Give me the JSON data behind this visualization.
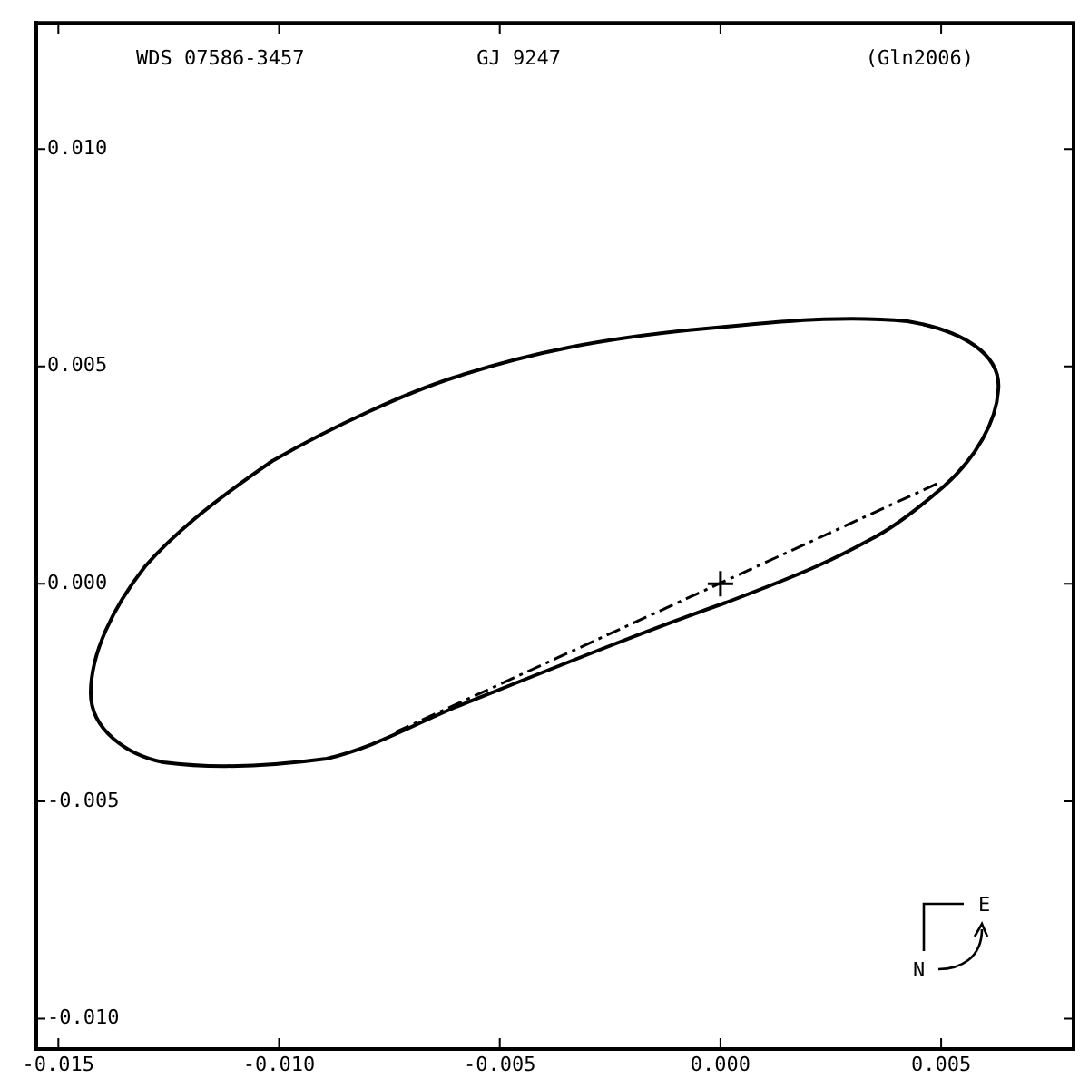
{
  "chart_data": {
    "type": "line",
    "title": "GJ 9247",
    "annotations": [
      "WDS 07586-3457",
      "(Gln2006)",
      "N",
      "E"
    ],
    "series": [
      {
        "type": "line",
        "color": "#000000",
        "line_style": "dashed",
        "marker": "none",
        "x": [
          -0.00736,
          0.00499
        ],
        "values": [
          -0.00341,
          0.00234
        ]
      },
      {
        "type": "scatter",
        "color": "#000000",
        "marker": "cross",
        "x": [
          0
        ],
        "values": [
          0
        ]
      }
    ],
    "xlim": [
      -0.0155,
      0.008
    ],
    "ylim": [
      -0.0107,
      0.0129
    ],
    "xticks": [
      {
        "value": -0.015,
        "label": "-0.015"
      },
      {
        "value": -0.01,
        "label": "-0.010"
      },
      {
        "value": -0.005,
        "label": "-0.005"
      },
      {
        "value": 0,
        "label": "0.000"
      },
      {
        "value": 0.005,
        "label": "0.005"
      }
    ],
    "yticks": [
      {
        "value": -0.01,
        "label": "-0.010"
      },
      {
        "value": -0.005,
        "label": "-0.005"
      },
      {
        "value": 0,
        "label": "0.000"
      },
      {
        "value": 0.005,
        "label": "0.005"
      },
      {
        "value": 0.01,
        "label": "0.010"
      }
    ],
    "grid": false,
    "legend": false
  }
}
